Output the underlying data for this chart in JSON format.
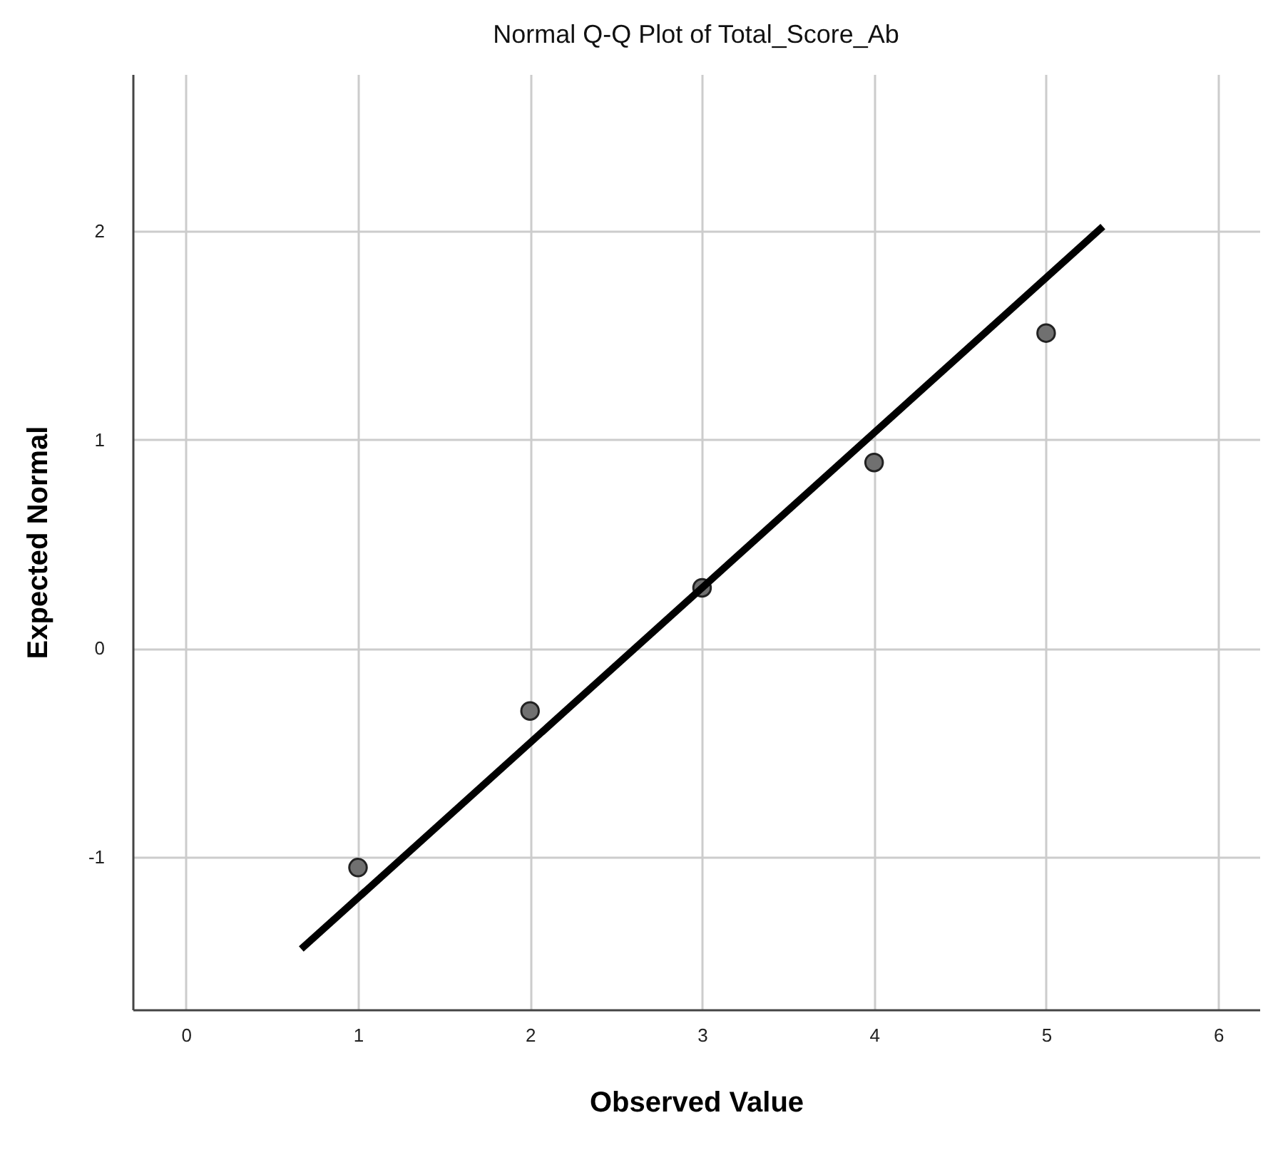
{
  "chart_data": {
    "type": "scatter",
    "title": "Normal Q-Q Plot of Total_Score_Ab",
    "xlabel": "Observed Value",
    "ylabel": "Expected Normal",
    "xlim": [
      -0.31,
      6.24
    ],
    "ylim": [
      -1.73,
      2.75
    ],
    "xticks": [
      0,
      1,
      2,
      3,
      4,
      5,
      6
    ],
    "yticks": [
      -1,
      0,
      1,
      2
    ],
    "grid": true,
    "series": [
      {
        "marker": "circle",
        "color": "#707070",
        "x": [
          1,
          2,
          3,
          4,
          5
        ],
        "values": [
          -1.05,
          -0.3,
          0.29,
          0.89,
          1.51
        ]
      },
      {
        "type": "line",
        "color": "#000000",
        "line_style": "solid",
        "x": [
          0.67,
          5.33
        ],
        "values": [
          -1.44,
          2.02
        ]
      }
    ]
  }
}
